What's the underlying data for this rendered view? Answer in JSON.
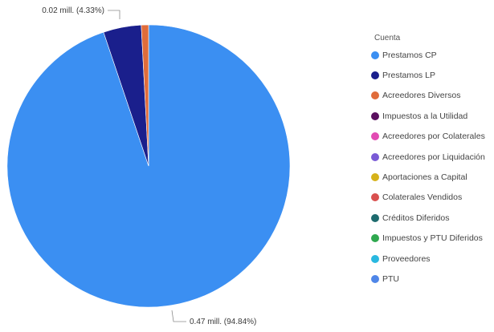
{
  "chart_data": {
    "type": "pie",
    "legend_title": "Cuenta",
    "legend_position": "right",
    "slices": [
      {
        "name": "Prestamos CP",
        "value": 0.47,
        "percent": 94.84,
        "color": "#3b8ff2",
        "label": "0.47 mill. (94.84%)"
      },
      {
        "name": "Prestamos LP",
        "value": 0.02,
        "percent": 4.33,
        "color": "#1a1f8c",
        "label": "0.02 mill. (4.33%)"
      },
      {
        "name": "Acreedores Diversos",
        "value": 0.004,
        "percent": 0.83,
        "color": "#e06c3b",
        "label": ""
      },
      {
        "name": "Impuestos a la Utilidad",
        "value": 0,
        "percent": 0,
        "color": "#5a0f5e",
        "label": ""
      },
      {
        "name": "Acreedores por Colaterales",
        "value": 0,
        "percent": 0,
        "color": "#e24bb3",
        "label": ""
      },
      {
        "name": "Acreedores por Liquidación",
        "value": 0,
        "percent": 0,
        "color": "#7a5bd6",
        "label": ""
      },
      {
        "name": "Aportaciones a Capital",
        "value": 0,
        "percent": 0,
        "color": "#d6b21a",
        "label": ""
      },
      {
        "name": "Colaterales Vendidos",
        "value": 0,
        "percent": 0,
        "color": "#d9504f",
        "label": ""
      },
      {
        "name": "Créditos Diferidos",
        "value": 0,
        "percent": 0,
        "color": "#1e6b6e",
        "label": ""
      },
      {
        "name": "Impuestos y PTU Diferidos",
        "value": 0,
        "percent": 0,
        "color": "#2fa84f",
        "label": ""
      },
      {
        "name": "Proveedores",
        "value": 0,
        "percent": 0,
        "color": "#29b8e0",
        "label": ""
      },
      {
        "name": "PTU",
        "value": 0,
        "percent": 0,
        "color": "#4f86e8",
        "label": ""
      }
    ]
  }
}
